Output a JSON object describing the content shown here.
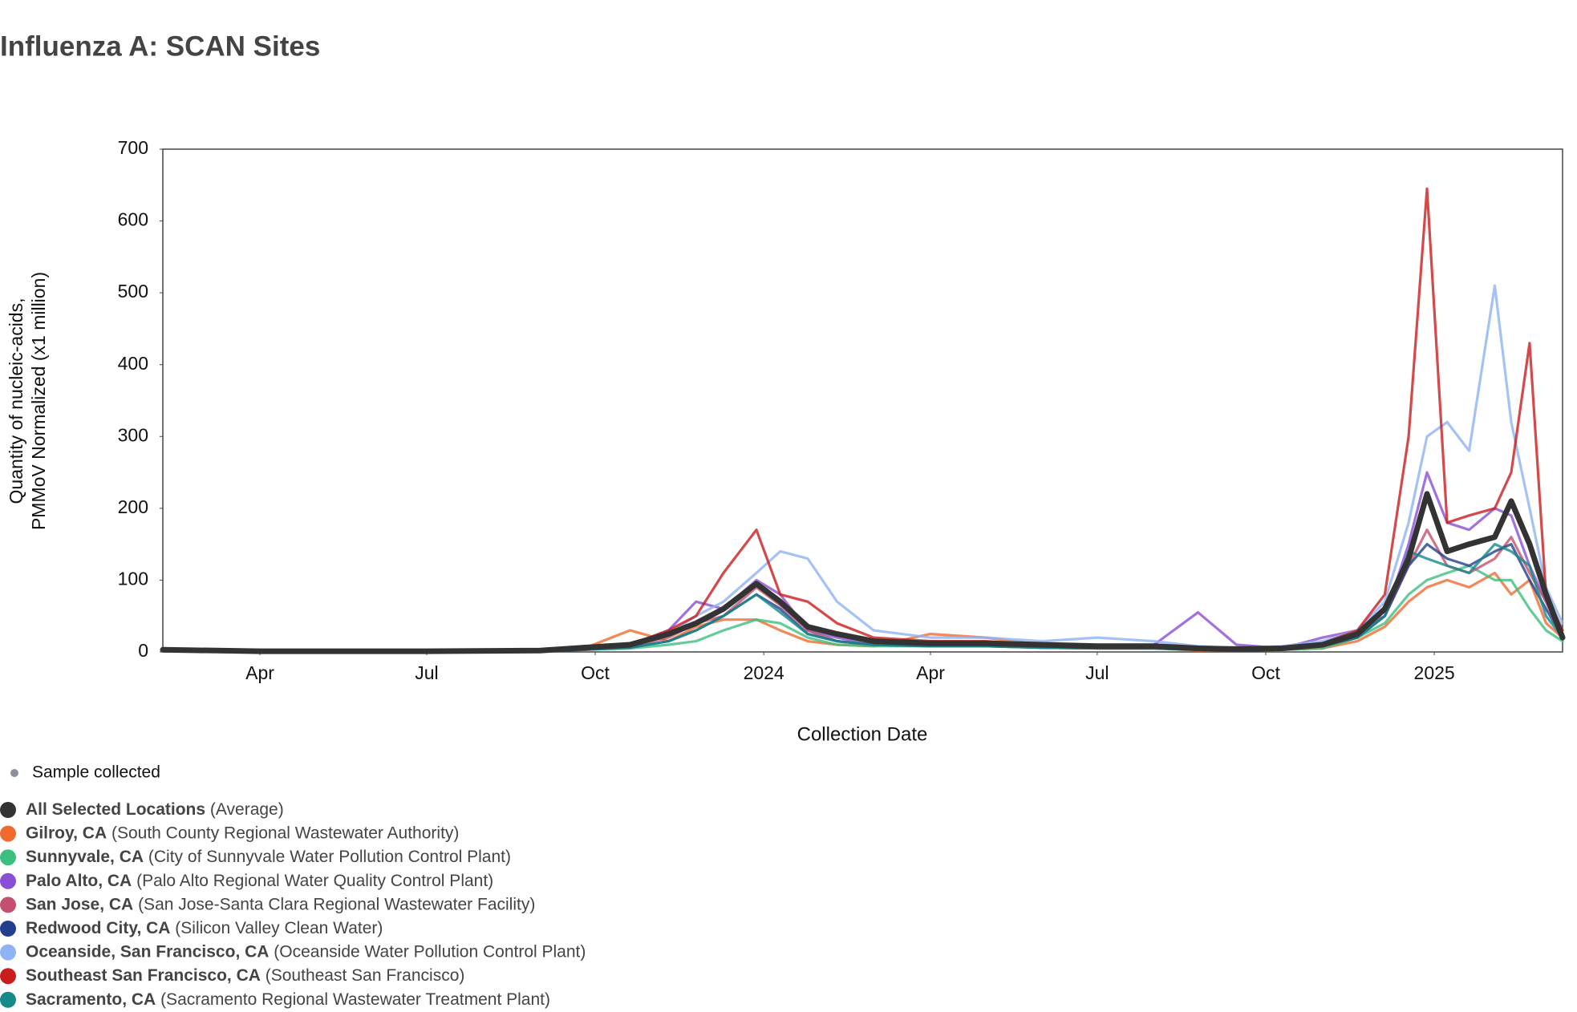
{
  "chart_data": {
    "type": "line",
    "title": "Influenza A: SCAN Sites",
    "x_label": "Collection Date",
    "y_label": [
      "Quantity of nucleic-acids,",
      "PMMoV Normalized (x1 million)"
    ],
    "sample_label": "Sample collected",
    "xlim": [
      "2023-02-07",
      "2025-03-12"
    ],
    "xticks": [
      {
        "value": "2023-04-01",
        "label": "Apr"
      },
      {
        "value": "2023-07-01",
        "label": "Jul"
      },
      {
        "value": "2023-10-01",
        "label": "Oct"
      },
      {
        "value": "2024-01-01",
        "label": "2024"
      },
      {
        "value": "2024-04-01",
        "label": "Apr"
      },
      {
        "value": "2024-07-01",
        "label": "Jul"
      },
      {
        "value": "2024-10-01",
        "label": "Oct"
      },
      {
        "value": "2025-01-01",
        "label": "2025"
      }
    ],
    "ylim": [
      0,
      700
    ],
    "yticks": [
      0,
      100,
      200,
      300,
      400,
      500,
      600,
      700
    ],
    "x": [
      "2023-02-07",
      "2023-04-01",
      "2023-07-01",
      "2023-09-01",
      "2023-09-25",
      "2023-10-20",
      "2023-11-10",
      "2023-11-25",
      "2023-12-10",
      "2023-12-28",
      "2024-01-10",
      "2024-01-25",
      "2024-02-10",
      "2024-03-01",
      "2024-04-01",
      "2024-05-01",
      "2024-06-01",
      "2024-07-01",
      "2024-08-01",
      "2024-08-25",
      "2024-09-15",
      "2024-10-10",
      "2024-11-01",
      "2024-11-20",
      "2024-12-05",
      "2024-12-18",
      "2024-12-28",
      "2025-01-08",
      "2025-01-20",
      "2025-02-03",
      "2025-02-12",
      "2025-02-22",
      "2025-03-03",
      "2025-03-12"
    ],
    "series": [
      {
        "name": "All Selected Locations",
        "detail": "(Average)",
        "color": "#333333",
        "values": [
          3,
          1,
          1,
          2,
          6,
          10,
          25,
          40,
          60,
          95,
          70,
          35,
          25,
          15,
          12,
          12,
          10,
          8,
          8,
          5,
          4,
          5,
          10,
          25,
          60,
          130,
          220,
          140,
          150,
          160,
          210,
          150,
          80,
          20
        ]
      },
      {
        "name": "Gilroy, CA",
        "detail": "(South County Regional Wastewater Authority)",
        "color": "#f06a30",
        "values": [
          2,
          1,
          1,
          1,
          5,
          30,
          15,
          35,
          45,
          45,
          30,
          15,
          10,
          8,
          25,
          20,
          10,
          5,
          5,
          2,
          2,
          3,
          5,
          15,
          35,
          70,
          90,
          100,
          90,
          110,
          80,
          100,
          40,
          20
        ]
      },
      {
        "name": "Sunnyvale, CA",
        "detail": "(City of Sunnyvale Water Pollution Control Plant)",
        "color": "#3dbf7f",
        "values": [
          1,
          1,
          1,
          1,
          3,
          5,
          10,
          15,
          30,
          45,
          40,
          20,
          10,
          8,
          8,
          8,
          6,
          5,
          5,
          3,
          2,
          3,
          5,
          20,
          40,
          80,
          100,
          110,
          120,
          100,
          100,
          60,
          30,
          15
        ]
      },
      {
        "name": "Palo Alto, CA",
        "detail": "(Palo Alto Regional Water Quality Control Plant)",
        "color": "#8a4fd6",
        "values": [
          3,
          1,
          1,
          2,
          8,
          10,
          30,
          70,
          60,
          100,
          80,
          30,
          20,
          10,
          15,
          10,
          8,
          8,
          10,
          55,
          10,
          5,
          20,
          30,
          50,
          150,
          250,
          180,
          170,
          200,
          190,
          120,
          70,
          20
        ]
      },
      {
        "name": "San Jose, CA",
        "detail": "(San Jose-Santa Clara Regional Wastewater Facility)",
        "color": "#c4506e",
        "values": [
          2,
          1,
          1,
          1,
          4,
          8,
          20,
          40,
          50,
          90,
          65,
          30,
          15,
          10,
          10,
          10,
          8,
          6,
          6,
          3,
          3,
          4,
          8,
          20,
          50,
          120,
          170,
          120,
          110,
          130,
          160,
          110,
          70,
          20
        ]
      },
      {
        "name": "Redwood City, CA",
        "detail": "(Silicon Valley Clean Water)",
        "color": "#23408e",
        "values": [
          2,
          1,
          1,
          1,
          3,
          6,
          15,
          30,
          50,
          80,
          60,
          25,
          15,
          10,
          8,
          8,
          6,
          5,
          5,
          3,
          3,
          4,
          8,
          20,
          50,
          120,
          150,
          130,
          120,
          140,
          150,
          100,
          60,
          20
        ]
      },
      {
        "name": "Oceanside, San Francisco, CA",
        "detail": "(Oceanside Water Pollution Control Plant)",
        "color": "#8fb3f5",
        "values": [
          4,
          1,
          1,
          1,
          5,
          10,
          25,
          50,
          70,
          110,
          140,
          130,
          70,
          30,
          20,
          20,
          15,
          20,
          15,
          8,
          5,
          8,
          15,
          30,
          70,
          180,
          300,
          320,
          280,
          510,
          320,
          200,
          90,
          40
        ]
      },
      {
        "name": "Southeast San Francisco, CA",
        "detail": "(Southeast San Francisco)",
        "color": "#c91c1c",
        "values": [
          3,
          1,
          1,
          2,
          6,
          10,
          30,
          50,
          110,
          170,
          80,
          70,
          40,
          20,
          15,
          15,
          10,
          8,
          8,
          5,
          4,
          5,
          12,
          30,
          80,
          300,
          645,
          180,
          190,
          200,
          250,
          430,
          80,
          30
        ]
      },
      {
        "name": "Sacramento, CA",
        "detail": "(Sacramento Regional Wastewater Treatment Plant)",
        "color": "#168a8a",
        "values": [
          2,
          1,
          1,
          1,
          3,
          6,
          15,
          30,
          50,
          80,
          55,
          25,
          15,
          10,
          8,
          8,
          6,
          5,
          5,
          3,
          3,
          4,
          8,
          20,
          50,
          140,
          130,
          120,
          110,
          150,
          140,
          120,
          50,
          20
        ]
      }
    ]
  }
}
